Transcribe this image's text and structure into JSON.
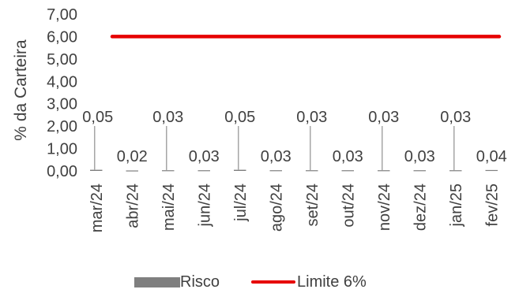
{
  "chart_data": {
    "type": "bar",
    "ylabel": "% da Carteira",
    "ylim": [
      0,
      7
    ],
    "yticks": [
      "0,00",
      "1,00",
      "2,00",
      "3,00",
      "4,00",
      "5,00",
      "6,00",
      "7,00"
    ],
    "categories": [
      "mar/24",
      "abr/24",
      "mai/24",
      "jun/24",
      "jul/24",
      "ago/24",
      "set/24",
      "out/24",
      "nov/24",
      "dez/24",
      "jan/25",
      "fev/25"
    ],
    "series": [
      {
        "name": "Risco",
        "type": "bar",
        "color": "#7f7f7f",
        "values": [
          0.05,
          0.02,
          0.03,
          0.03,
          0.05,
          0.03,
          0.03,
          0.03,
          0.03,
          0.03,
          0.03,
          0.04
        ],
        "labels": [
          "0,05",
          "0,02",
          "0,03",
          "0,03",
          "0,05",
          "0,03",
          "0,03",
          "0,03",
          "0,03",
          "0,03",
          "0,03",
          "0,04"
        ]
      },
      {
        "name": "Limite 6%",
        "type": "line",
        "color": "#e60000",
        "values": [
          6,
          6,
          6,
          6,
          6,
          6,
          6,
          6,
          6,
          6,
          6,
          6
        ]
      }
    ],
    "legend_position": "bottom",
    "grid": false
  }
}
